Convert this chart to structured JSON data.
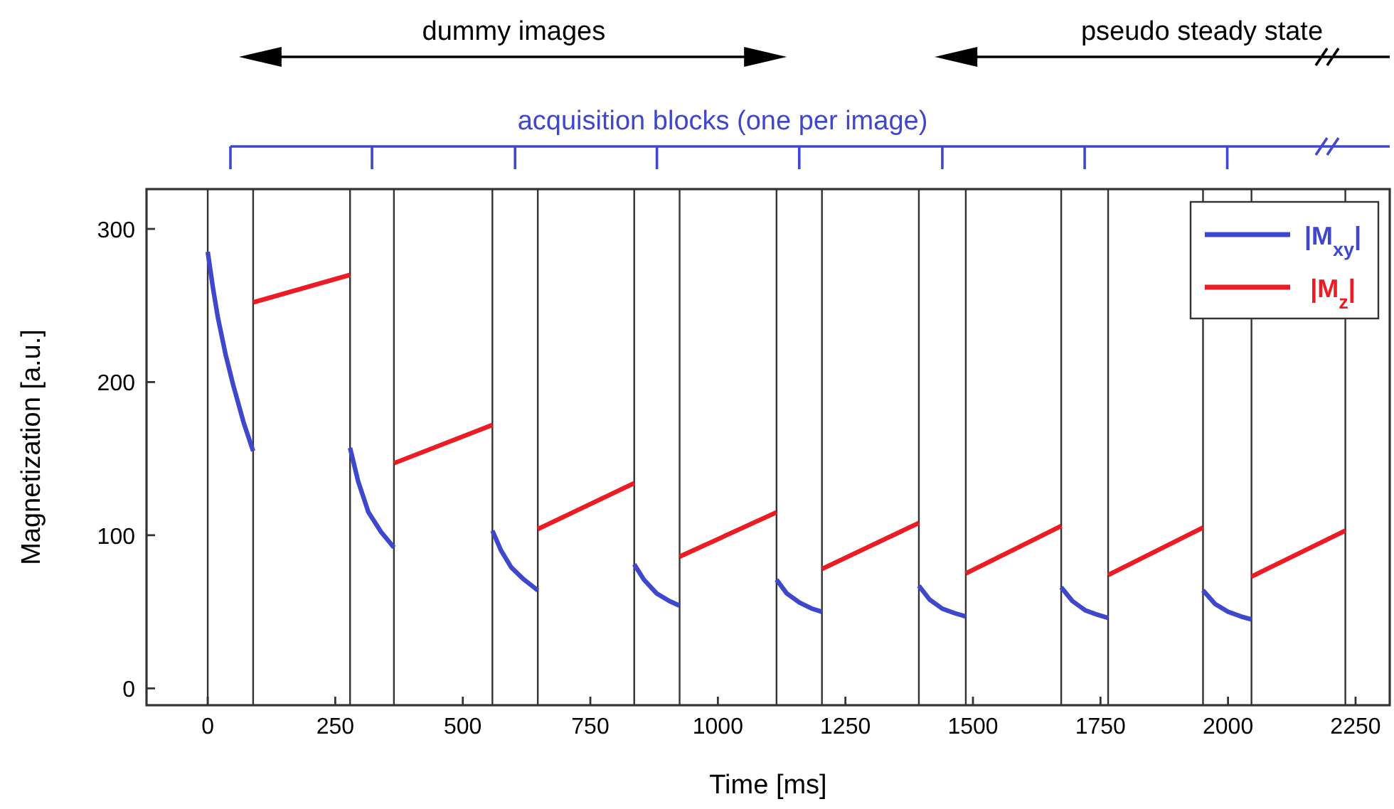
{
  "chart_data": {
    "type": "line",
    "xlabel": "Time [ms]",
    "ylabel": "Magnetization [a.u.]",
    "xlim": [
      -120,
      2317
    ],
    "ylim": [
      -11,
      326
    ],
    "xticks": [
      0,
      250,
      500,
      750,
      1000,
      1250,
      1500,
      1750,
      2000,
      2250
    ],
    "yticks": [
      0,
      100,
      200,
      300
    ],
    "grid": false,
    "legend": "top right",
    "marker": "none",
    "line_style": "solid",
    "series": [
      {
        "name": "|M$_{xy}$|",
        "color": "#3f48cc",
        "x": [
          0,
          10,
          20,
          35,
          50,
          70,
          89,
          180,
          279,
          295,
          315,
          340,
          365,
          460,
          558,
          575,
          595,
          620,
          647,
          740,
          836,
          855,
          880,
          905,
          925,
          1020,
          1115,
          1135,
          1160,
          1185,
          1204,
          1300,
          1394,
          1415,
          1440,
          1465,
          1486,
          1580,
          1673,
          1695,
          1720,
          1745,
          1765,
          1860,
          1951,
          1975,
          2000,
          2025,
          2046
        ],
        "values": [
          285,
          262,
          242,
          218,
          198,
          174,
          155,
          null,
          157,
          135,
          115,
          102,
          92,
          null,
          103,
          90,
          79,
          71,
          64,
          null,
          81,
          71,
          62,
          57,
          54,
          null,
          71,
          62,
          56,
          52,
          50,
          null,
          67,
          58,
          52,
          49,
          47,
          null,
          66,
          57,
          51,
          48,
          46,
          null,
          64,
          55,
          50,
          47,
          45
        ]
      },
      {
        "name": "|M$_{z}$|",
        "color": "#ed1c24",
        "x": [
          89,
          279,
          322,
          365,
          558,
          602,
          647,
          836,
          880,
          925,
          1115,
          1160,
          1204,
          1394,
          1440,
          1486,
          1673,
          1720,
          1765,
          1951,
          2000,
          2046,
          2230
        ],
        "values": [
          252,
          270,
          null,
          147,
          172,
          null,
          104,
          134,
          null,
          86,
          115,
          null,
          78,
          108,
          null,
          75,
          106,
          null,
          74,
          105,
          null,
          73,
          103
        ]
      }
    ],
    "ref_lines": [
      {
        "axis": "x",
        "value": 0,
        "color": "#333333"
      },
      {
        "axis": "x",
        "value": 89,
        "color": "#333333"
      },
      {
        "axis": "x",
        "value": 279,
        "color": "#333333"
      },
      {
        "axis": "x",
        "value": 365,
        "color": "#333333"
      },
      {
        "axis": "x",
        "value": 558,
        "color": "#333333"
      },
      {
        "axis": "x",
        "value": 647,
        "color": "#333333"
      },
      {
        "axis": "x",
        "value": 836,
        "color": "#333333"
      },
      {
        "axis": "x",
        "value": 925,
        "color": "#333333"
      },
      {
        "axis": "x",
        "value": 1115,
        "color": "#333333"
      },
      {
        "axis": "x",
        "value": 1204,
        "color": "#333333"
      },
      {
        "axis": "x",
        "value": 1394,
        "color": "#333333"
      },
      {
        "axis": "x",
        "value": 1486,
        "color": "#333333"
      },
      {
        "axis": "x",
        "value": 1673,
        "color": "#333333"
      },
      {
        "axis": "x",
        "value": 1765,
        "color": "#333333"
      },
      {
        "axis": "x",
        "value": 1951,
        "color": "#333333"
      },
      {
        "axis": "x",
        "value": 2046,
        "color": "#333333"
      },
      {
        "axis": "x",
        "value": 2230,
        "color": "#333333"
      }
    ],
    "annotations": [
      "dummy images",
      "pseudo steady state",
      "acquisition blocks (one per image)"
    ]
  }
}
